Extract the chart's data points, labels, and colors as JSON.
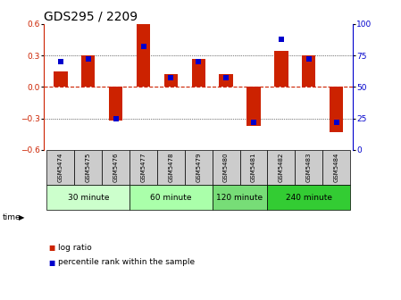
{
  "title": "GDS295 / 2209",
  "samples": [
    "GSM5474",
    "GSM5475",
    "GSM5476",
    "GSM5477",
    "GSM5478",
    "GSM5479",
    "GSM5480",
    "GSM5481",
    "GSM5482",
    "GSM5483",
    "GSM5484"
  ],
  "log_ratio": [
    0.15,
    0.3,
    -0.32,
    0.6,
    0.12,
    0.27,
    0.12,
    -0.37,
    0.34,
    0.3,
    -0.43
  ],
  "percentile": [
    70,
    72,
    25,
    82,
    57,
    70,
    57,
    22,
    88,
    72,
    22
  ],
  "ylim": [
    -0.6,
    0.6
  ],
  "yticks_left": [
    -0.6,
    -0.3,
    0.0,
    0.3,
    0.6
  ],
  "yticks_right": [
    0,
    25,
    50,
    75,
    100
  ],
  "groups": [
    {
      "label": "30 minute",
      "start": 0,
      "end": 3,
      "color": "#ccffcc"
    },
    {
      "label": "60 minute",
      "start": 3,
      "end": 6,
      "color": "#aaffaa"
    },
    {
      "label": "120 minute",
      "start": 6,
      "end": 8,
      "color": "#77dd77"
    },
    {
      "label": "240 minute",
      "start": 8,
      "end": 11,
      "color": "#33cc33"
    }
  ],
  "bar_color": "#cc2200",
  "dot_color": "#0000cc",
  "bar_width": 0.5,
  "dot_size": 18,
  "bg_color": "#ffffff",
  "plot_bg": "#ffffff",
  "sample_bg": "#cccccc",
  "hline_color": "#cc2200",
  "title_fontsize": 10,
  "tick_fontsize": 6.5,
  "label_fontsize": 7
}
